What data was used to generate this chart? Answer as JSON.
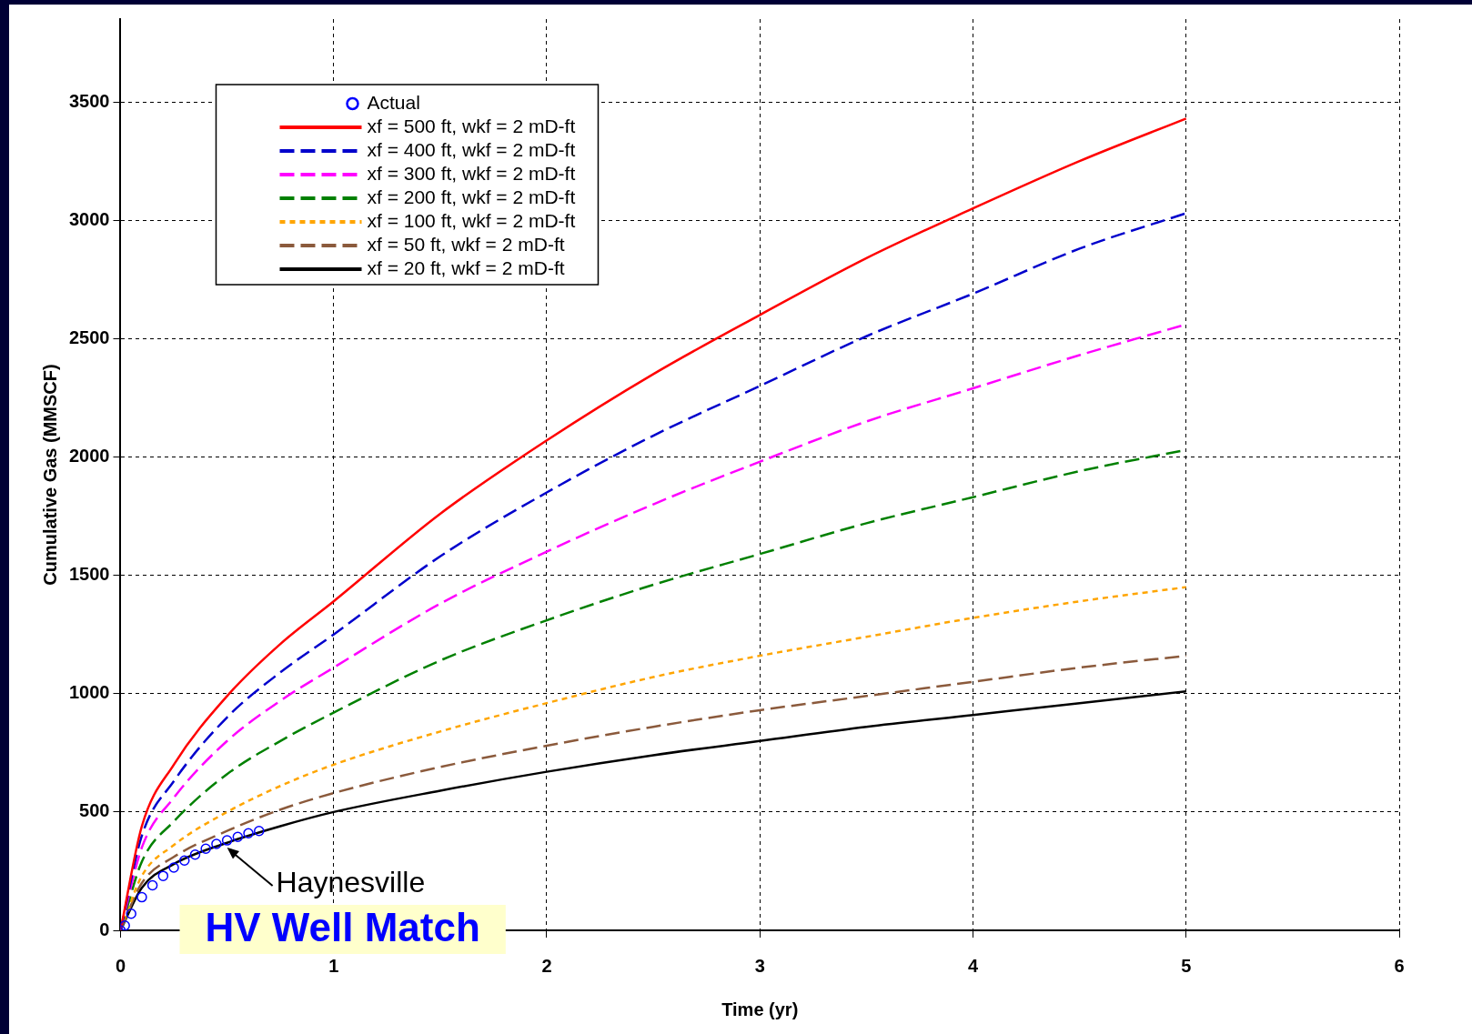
{
  "chart_data": {
    "type": "line",
    "title": "HV Well Match",
    "xlabel": "Time (yr)",
    "ylabel": "Cumulative Gas (MMSCF)",
    "xlim": [
      0,
      6
    ],
    "xticks": [
      0,
      1,
      2,
      3,
      4,
      5,
      6
    ],
    "ylim": [
      0,
      3850
    ],
    "yticks": [
      0,
      500,
      1000,
      1500,
      2000,
      2500,
      3000,
      3500
    ],
    "grid": true,
    "legend": "top left",
    "annotations": [
      {
        "text": "Haynesville",
        "x": 0.5,
        "y": 350
      }
    ],
    "series": [
      {
        "name": "Actual",
        "type": "scatter",
        "marker": "circle",
        "color": "#0000ff",
        "x": [
          0,
          0.02,
          0.05,
          0.1,
          0.15,
          0.2,
          0.25,
          0.3,
          0.35,
          0.4,
          0.45,
          0.5,
          0.55,
          0.6,
          0.65
        ],
        "values": [
          0,
          20,
          70,
          140,
          190,
          230,
          265,
          295,
          320,
          345,
          365,
          380,
          395,
          410,
          420
        ]
      },
      {
        "name": "xf = 500 ft, wkf = 2 mD-ft",
        "color": "#ff0000",
        "line_style": "solid",
        "x": [
          0,
          0.1,
          0.25,
          0.5,
          0.75,
          1,
          1.5,
          2,
          2.5,
          3,
          3.5,
          4,
          4.5,
          5
        ],
        "values": [
          0,
          440,
          700,
          990,
          1210,
          1390,
          1760,
          2070,
          2350,
          2600,
          2840,
          3050,
          3250,
          3430
        ]
      },
      {
        "name": "xf = 400 ft, wkf = 2 mD-ft",
        "color": "#0000cc",
        "line_style": "dashed",
        "x": [
          0,
          0.1,
          0.25,
          0.5,
          0.75,
          1,
          1.5,
          2,
          2.5,
          3,
          3.5,
          4,
          4.5,
          5
        ],
        "values": [
          0,
          400,
          630,
          900,
          1090,
          1250,
          1580,
          1850,
          2090,
          2300,
          2510,
          2690,
          2880,
          3030
        ]
      },
      {
        "name": "xf = 300 ft, wkf = 2 mD-ft",
        "color": "#ff00ff",
        "line_style": "dashed",
        "x": [
          0,
          0.1,
          0.25,
          0.5,
          0.75,
          1,
          1.5,
          2,
          2.5,
          3,
          3.5,
          4,
          4.5,
          5
        ],
        "values": [
          0,
          350,
          560,
          800,
          970,
          1110,
          1380,
          1600,
          1800,
          1980,
          2150,
          2290,
          2430,
          2560
        ]
      },
      {
        "name": "xf = 200 ft, wkf = 2 mD-ft",
        "color": "#008000",
        "line_style": "dashed",
        "x": [
          0,
          0.1,
          0.25,
          0.5,
          0.75,
          1,
          1.5,
          2,
          2.5,
          3,
          3.5,
          4,
          4.5,
          5
        ],
        "values": [
          0,
          290,
          460,
          660,
          800,
          920,
          1140,
          1310,
          1460,
          1590,
          1720,
          1830,
          1940,
          2030
        ]
      },
      {
        "name": "xf = 100 ft, wkf = 2 mD-ft",
        "color": "#ffa500",
        "line_style": "dotted",
        "x": [
          0,
          0.1,
          0.25,
          0.5,
          0.75,
          1,
          1.5,
          2,
          2.5,
          3,
          3.5,
          4,
          4.5,
          5
        ],
        "values": [
          0,
          230,
          360,
          500,
          610,
          700,
          840,
          960,
          1070,
          1160,
          1240,
          1320,
          1390,
          1450
        ]
      },
      {
        "name": "xf = 50 ft, wkf = 2 mD-ft",
        "color": "#8b5a3c",
        "line_style": "dashed",
        "x": [
          0,
          0.1,
          0.25,
          0.5,
          0.75,
          1,
          1.5,
          2,
          2.5,
          3,
          3.5,
          4,
          4.5,
          5
        ],
        "values": [
          0,
          200,
          310,
          420,
          510,
          580,
          690,
          780,
          860,
          930,
          990,
          1050,
          1110,
          1160
        ]
      },
      {
        "name": "xf = 20 ft, wkf = 2 mD-ft",
        "color": "#000000",
        "line_style": "solid",
        "x": [
          0,
          0.1,
          0.25,
          0.5,
          0.75,
          1,
          1.5,
          2,
          2.5,
          3,
          3.5,
          4,
          4.5,
          5
        ],
        "values": [
          0,
          180,
          280,
          370,
          440,
          500,
          590,
          670,
          740,
          800,
          860,
          910,
          960,
          1010
        ]
      }
    ]
  }
}
